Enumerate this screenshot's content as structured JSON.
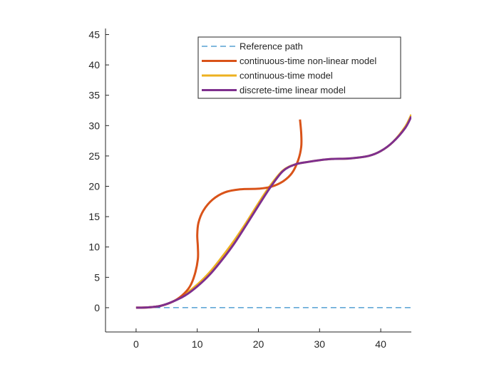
{
  "chart_data": {
    "type": "line",
    "title": "",
    "xlabel": "",
    "ylabel": "",
    "xlim": [
      -5,
      45
    ],
    "ylim": [
      -4,
      46
    ],
    "xticks": [
      0,
      10,
      20,
      30,
      40
    ],
    "yticks": [
      0,
      5,
      10,
      15,
      20,
      25,
      30,
      35,
      40,
      45
    ],
    "x_tick_labels": [
      "0",
      "10",
      "20",
      "30",
      "40"
    ],
    "y_tick_labels": [
      "0",
      "5",
      "10",
      "15",
      "20",
      "25",
      "30",
      "35",
      "40",
      "45"
    ],
    "grid": false,
    "legend_position": "top-right",
    "series": [
      {
        "name": "Reference path",
        "color": "#0072BD",
        "style": "dashed",
        "points": [
          [
            0,
            0
          ],
          [
            45,
            0
          ]
        ]
      },
      {
        "name": "continuous-time non-linear model",
        "color": "#D95319",
        "style": "solid",
        "points": [
          [
            0,
            0
          ],
          [
            2,
            0.05
          ],
          [
            4,
            0.3
          ],
          [
            6,
            1
          ],
          [
            7.5,
            2
          ],
          [
            8.8,
            3.5
          ],
          [
            9.6,
            5.5
          ],
          [
            10.1,
            8
          ],
          [
            10.1,
            10
          ],
          [
            10,
            12
          ],
          [
            10.2,
            14
          ],
          [
            11,
            16
          ],
          [
            12.5,
            17.8
          ],
          [
            14.5,
            19
          ],
          [
            17,
            19.5
          ],
          [
            20,
            19.6
          ],
          [
            22,
            19.9
          ],
          [
            24,
            20.8
          ],
          [
            25.5,
            22.2
          ],
          [
            26.5,
            24.3
          ],
          [
            27,
            26.5
          ],
          [
            27,
            28.7
          ],
          [
            26.8,
            31
          ]
        ]
      },
      {
        "name": "continuous-time model",
        "color": "#EDB120",
        "style": "solid",
        "points": [
          [
            0,
            0
          ],
          [
            2,
            0.05
          ],
          [
            4,
            0.3
          ],
          [
            6,
            1
          ],
          [
            8,
            2.2
          ],
          [
            10,
            3.8
          ],
          [
            12,
            5.8
          ],
          [
            14,
            8.3
          ],
          [
            16,
            11
          ],
          [
            18,
            14
          ],
          [
            20,
            17.2
          ],
          [
            22,
            20.2
          ],
          [
            24,
            22.6
          ],
          [
            26,
            23.6
          ],
          [
            28,
            24
          ],
          [
            30,
            24.3
          ],
          [
            32,
            24.5
          ],
          [
            35,
            24.6
          ],
          [
            38,
            25
          ],
          [
            40,
            25.8
          ],
          [
            42,
            27.3
          ],
          [
            44,
            29.8
          ],
          [
            45,
            31.8
          ]
        ]
      },
      {
        "name": "discrete-time linear model",
        "color": "#7E2F8E",
        "style": "solid",
        "points": [
          [
            0,
            0
          ],
          [
            2,
            0.05
          ],
          [
            4,
            0.3
          ],
          [
            6,
            1
          ],
          [
            8,
            2
          ],
          [
            10,
            3.5
          ],
          [
            12,
            5.4
          ],
          [
            14,
            7.8
          ],
          [
            16,
            10.5
          ],
          [
            18,
            13.6
          ],
          [
            20,
            16.8
          ],
          [
            22,
            19.9
          ],
          [
            24,
            22.5
          ],
          [
            26,
            23.6
          ],
          [
            28,
            24
          ],
          [
            30,
            24.3
          ],
          [
            32,
            24.5
          ],
          [
            35,
            24.6
          ],
          [
            38,
            25
          ],
          [
            40,
            25.8
          ],
          [
            42,
            27.3
          ],
          [
            44,
            29.6
          ],
          [
            45,
            31.5
          ]
        ]
      }
    ]
  }
}
